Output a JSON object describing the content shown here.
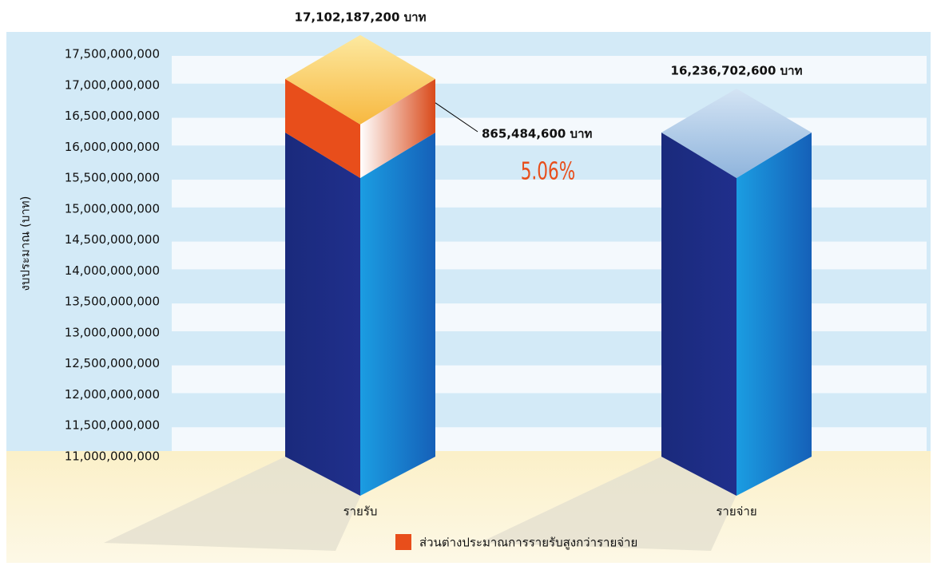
{
  "chart_data": {
    "type": "bar3d",
    "y_label": "งบประมาณ (บาท)",
    "categories": [
      "รายรับ",
      "รายจ่าย"
    ],
    "values": [
      17102187200,
      16236702600
    ],
    "value_labels": [
      "17,102,187,200 บาท",
      "16,236,702,600 บาท"
    ],
    "difference": {
      "name": "ส่วนต่างประมาณการรายรับสูงกว่ารายจ่าย",
      "value": 865484600,
      "value_label": "865,484,600 บาท",
      "percent": 5.06,
      "percent_label": "5.06%",
      "color": "#e84e1b"
    },
    "ylim": [
      11000000000,
      17500000000
    ],
    "yticks": [
      {
        "value": 11000000000,
        "label": "11,000,000,000"
      },
      {
        "value": 11500000000,
        "label": "11,500,000,000"
      },
      {
        "value": 12000000000,
        "label": "12,000,000,000"
      },
      {
        "value": 12500000000,
        "label": "12,500,000,000"
      },
      {
        "value": 13000000000,
        "label": "13,000,000,000"
      },
      {
        "value": 13500000000,
        "label": "13,500,000,000"
      },
      {
        "value": 14000000000,
        "label": "14,000,000,000"
      },
      {
        "value": 14500000000,
        "label": "14,500,000,000"
      },
      {
        "value": 15000000000,
        "label": "15,000,000,000"
      },
      {
        "value": 15500000000,
        "label": "15,500,000,000"
      },
      {
        "value": 16000000000,
        "label": "16,000,000,000"
      },
      {
        "value": 16500000000,
        "label": "16,500,000,000"
      },
      {
        "value": 17000000000,
        "label": "17,000,000,000"
      },
      {
        "value": 17500000000,
        "label": "17,500,000,000"
      }
    ],
    "grid": true
  }
}
